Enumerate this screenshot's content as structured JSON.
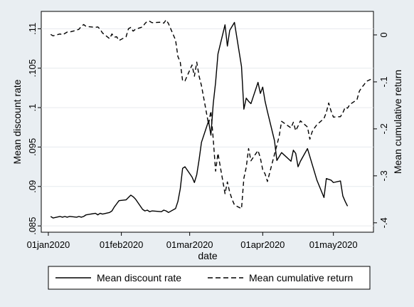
{
  "chart_data": {
    "type": "line",
    "xlabel": "date",
    "ylabel_left": "Mean discount rate",
    "ylabel_right": "Mean cumulative return",
    "x_ticks": [
      "01jan2020",
      "01feb2020",
      "01mar2020",
      "01apr2020",
      "01may2020"
    ],
    "y_left_ticks": [
      ".085",
      ".09",
      ".095",
      ".1",
      ".105",
      ".11"
    ],
    "y_right_ticks": [
      "0",
      "-.1",
      "-.2",
      "-.3",
      "-.4"
    ],
    "xlim": [
      "2019-12-29",
      "2020-05-18"
    ],
    "ylim_left": [
      0.0842,
      0.1122
    ],
    "ylim_right": [
      -0.42,
      0.05
    ],
    "grid": true,
    "legend_position": "bottom",
    "series": [
      {
        "name": "Mean discount rate",
        "axis": "left",
        "style": "solid",
        "points": [
          [
            "2020-01-02",
            0.0862
          ],
          [
            "2020-01-03",
            0.086
          ],
          [
            "2020-01-06",
            0.0862
          ],
          [
            "2020-01-07",
            0.0861
          ],
          [
            "2020-01-08",
            0.0862
          ],
          [
            "2020-01-09",
            0.0861
          ],
          [
            "2020-01-10",
            0.0862
          ],
          [
            "2020-01-13",
            0.0861
          ],
          [
            "2020-01-14",
            0.0862
          ],
          [
            "2020-01-15",
            0.0861
          ],
          [
            "2020-01-16",
            0.0862
          ],
          [
            "2020-01-17",
            0.0864
          ],
          [
            "2020-01-21",
            0.0866
          ],
          [
            "2020-01-22",
            0.0864
          ],
          [
            "2020-01-23",
            0.0866
          ],
          [
            "2020-01-24",
            0.0865
          ],
          [
            "2020-01-27",
            0.0867
          ],
          [
            "2020-01-28",
            0.0869
          ],
          [
            "2020-01-29",
            0.0874
          ],
          [
            "2020-01-30",
            0.0878
          ],
          [
            "2020-01-31",
            0.0882
          ],
          [
            "2020-02-03",
            0.0883
          ],
          [
            "2020-02-04",
            0.0886
          ],
          [
            "2020-02-05",
            0.0889
          ],
          [
            "2020-02-06",
            0.0887
          ],
          [
            "2020-02-07",
            0.0884
          ],
          [
            "2020-02-10",
            0.0871
          ],
          [
            "2020-02-11",
            0.0869
          ],
          [
            "2020-02-12",
            0.087
          ],
          [
            "2020-02-13",
            0.0868
          ],
          [
            "2020-02-14",
            0.0869
          ],
          [
            "2020-02-18",
            0.0868
          ],
          [
            "2020-02-19",
            0.087
          ],
          [
            "2020-02-20",
            0.0869
          ],
          [
            "2020-02-21",
            0.0867
          ],
          [
            "2020-02-24",
            0.0872
          ],
          [
            "2020-02-25",
            0.0881
          ],
          [
            "2020-02-26",
            0.0897
          ],
          [
            "2020-02-27",
            0.0923
          ],
          [
            "2020-02-28",
            0.0925
          ],
          [
            "2020-03-02",
            0.0912
          ],
          [
            "2020-03-03",
            0.0905
          ],
          [
            "2020-03-04",
            0.0915
          ],
          [
            "2020-03-05",
            0.0934
          ],
          [
            "2020-03-06",
            0.0956
          ],
          [
            "2020-03-09",
            0.0983
          ],
          [
            "2020-03-10",
            0.0965
          ],
          [
            "2020-03-11",
            0.1005
          ],
          [
            "2020-03-12",
            0.1032
          ],
          [
            "2020-03-13",
            0.1068
          ],
          [
            "2020-03-16",
            0.1105
          ],
          [
            "2020-03-17",
            0.1078
          ],
          [
            "2020-03-18",
            0.1098
          ],
          [
            "2020-03-19",
            0.1103
          ],
          [
            "2020-03-20",
            0.1108
          ],
          [
            "2020-03-23",
            0.1052
          ],
          [
            "2020-03-24",
            0.0998
          ],
          [
            "2020-03-25",
            0.1012
          ],
          [
            "2020-03-26",
            0.1008
          ],
          [
            "2020-03-27",
            0.1005
          ],
          [
            "2020-03-30",
            0.1032
          ],
          [
            "2020-03-31",
            0.1018
          ],
          [
            "2020-04-01",
            0.1026
          ],
          [
            "2020-04-02",
            0.1008
          ],
          [
            "2020-04-03",
            0.0995
          ],
          [
            "2020-04-06",
            0.0958
          ],
          [
            "2020-04-07",
            0.0933
          ],
          [
            "2020-04-08",
            0.0938
          ],
          [
            "2020-04-09",
            0.0943
          ],
          [
            "2020-04-13",
            0.0932
          ],
          [
            "2020-04-14",
            0.0946
          ],
          [
            "2020-04-15",
            0.0942
          ],
          [
            "2020-04-16",
            0.0925
          ],
          [
            "2020-04-17",
            0.0932
          ],
          [
            "2020-04-20",
            0.0948
          ],
          [
            "2020-04-21",
            0.0938
          ],
          [
            "2020-04-22",
            0.0928
          ],
          [
            "2020-04-23",
            0.0918
          ],
          [
            "2020-04-24",
            0.0908
          ],
          [
            "2020-04-27",
            0.0886
          ],
          [
            "2020-04-28",
            0.091
          ],
          [
            "2020-04-29",
            0.0909
          ],
          [
            "2020-04-30",
            0.0908
          ],
          [
            "2020-05-01",
            0.0905
          ],
          [
            "2020-05-04",
            0.0907
          ],
          [
            "2020-05-05",
            0.0888
          ],
          [
            "2020-05-06",
            0.0881
          ],
          [
            "2020-05-07",
            0.0875
          ]
        ]
      },
      {
        "name": "Mean cumulative return",
        "axis": "right",
        "style": "dashed",
        "points": [
          [
            "2020-01-02",
            0.001
          ],
          [
            "2020-01-03",
            -0.002
          ],
          [
            "2020-01-06",
            0.002
          ],
          [
            "2020-01-07",
            0.0
          ],
          [
            "2020-01-08",
            0.003
          ],
          [
            "2020-01-09",
            0.006
          ],
          [
            "2020-01-10",
            0.006
          ],
          [
            "2020-01-13",
            0.01
          ],
          [
            "2020-01-14",
            0.012
          ],
          [
            "2020-01-15",
            0.018
          ],
          [
            "2020-01-16",
            0.022
          ],
          [
            "2020-01-17",
            0.018
          ],
          [
            "2020-01-21",
            0.016
          ],
          [
            "2020-01-22",
            0.017
          ],
          [
            "2020-01-23",
            0.012
          ],
          [
            "2020-01-24",
            0.004
          ],
          [
            "2020-01-27",
            -0.008
          ],
          [
            "2020-01-28",
            0.002
          ],
          [
            "2020-01-29",
            -0.005
          ],
          [
            "2020-01-30",
            -0.004
          ],
          [
            "2020-01-31",
            -0.012
          ],
          [
            "2020-02-03",
            -0.004
          ],
          [
            "2020-02-04",
            0.013
          ],
          [
            "2020-02-05",
            0.016
          ],
          [
            "2020-02-06",
            0.008
          ],
          [
            "2020-02-07",
            0.012
          ],
          [
            "2020-02-10",
            0.017
          ],
          [
            "2020-02-11",
            0.024
          ],
          [
            "2020-02-12",
            0.029
          ],
          [
            "2020-02-13",
            0.029
          ],
          [
            "2020-02-14",
            0.026
          ],
          [
            "2020-02-18",
            0.027
          ],
          [
            "2020-02-19",
            0.025
          ],
          [
            "2020-02-20",
            0.032
          ],
          [
            "2020-02-21",
            0.024
          ],
          [
            "2020-02-24",
            -0.011
          ],
          [
            "2020-02-25",
            -0.046
          ],
          [
            "2020-02-26",
            -0.058
          ],
          [
            "2020-02-27",
            -0.098
          ],
          [
            "2020-02-28",
            -0.098
          ],
          [
            "2020-03-02",
            -0.064
          ],
          [
            "2020-03-03",
            -0.088
          ],
          [
            "2020-03-04",
            -0.058
          ],
          [
            "2020-03-05",
            -0.088
          ],
          [
            "2020-03-06",
            -0.108
          ],
          [
            "2020-03-09",
            -0.19
          ],
          [
            "2020-03-10",
            -0.162
          ],
          [
            "2020-03-11",
            -0.222
          ],
          [
            "2020-03-12",
            -0.29
          ],
          [
            "2020-03-13",
            -0.252
          ],
          [
            "2020-03-16",
            -0.338
          ],
          [
            "2020-03-17",
            -0.313
          ],
          [
            "2020-03-18",
            -0.335
          ],
          [
            "2020-03-19",
            -0.35
          ],
          [
            "2020-03-20",
            -0.362
          ],
          [
            "2020-03-23",
            -0.37
          ],
          [
            "2020-03-24",
            -0.305
          ],
          [
            "2020-03-25",
            -0.282
          ],
          [
            "2020-03-26",
            -0.242
          ],
          [
            "2020-03-27",
            -0.268
          ],
          [
            "2020-03-30",
            -0.246
          ],
          [
            "2020-03-31",
            -0.262
          ],
          [
            "2020-04-01",
            -0.287
          ],
          [
            "2020-04-02",
            -0.296
          ],
          [
            "2020-04-03",
            -0.312
          ],
          [
            "2020-04-06",
            -0.254
          ],
          [
            "2020-04-07",
            -0.235
          ],
          [
            "2020-04-08",
            -0.215
          ],
          [
            "2020-04-09",
            -0.184
          ],
          [
            "2020-04-13",
            -0.198
          ],
          [
            "2020-04-14",
            -0.186
          ],
          [
            "2020-04-15",
            -0.204
          ],
          [
            "2020-04-16",
            -0.194
          ],
          [
            "2020-04-17",
            -0.183
          ],
          [
            "2020-04-20",
            -0.196
          ],
          [
            "2020-04-21",
            -0.222
          ],
          [
            "2020-04-22",
            -0.206
          ],
          [
            "2020-04-23",
            -0.198
          ],
          [
            "2020-04-24",
            -0.191
          ],
          [
            "2020-04-27",
            -0.178
          ],
          [
            "2020-04-28",
            -0.165
          ],
          [
            "2020-04-29",
            -0.145
          ],
          [
            "2020-04-30",
            -0.162
          ],
          [
            "2020-05-01",
            -0.175
          ],
          [
            "2020-05-04",
            -0.174
          ],
          [
            "2020-05-05",
            -0.166
          ],
          [
            "2020-05-06",
            -0.154
          ],
          [
            "2020-05-07",
            -0.156
          ],
          [
            "2020-05-08",
            -0.148
          ],
          [
            "2020-05-11",
            -0.138
          ],
          [
            "2020-05-12",
            -0.12
          ],
          [
            "2020-05-13",
            -0.112
          ],
          [
            "2020-05-14",
            -0.106
          ],
          [
            "2020-05-15",
            -0.099
          ],
          [
            "2020-05-18",
            -0.092
          ]
        ]
      }
    ]
  }
}
